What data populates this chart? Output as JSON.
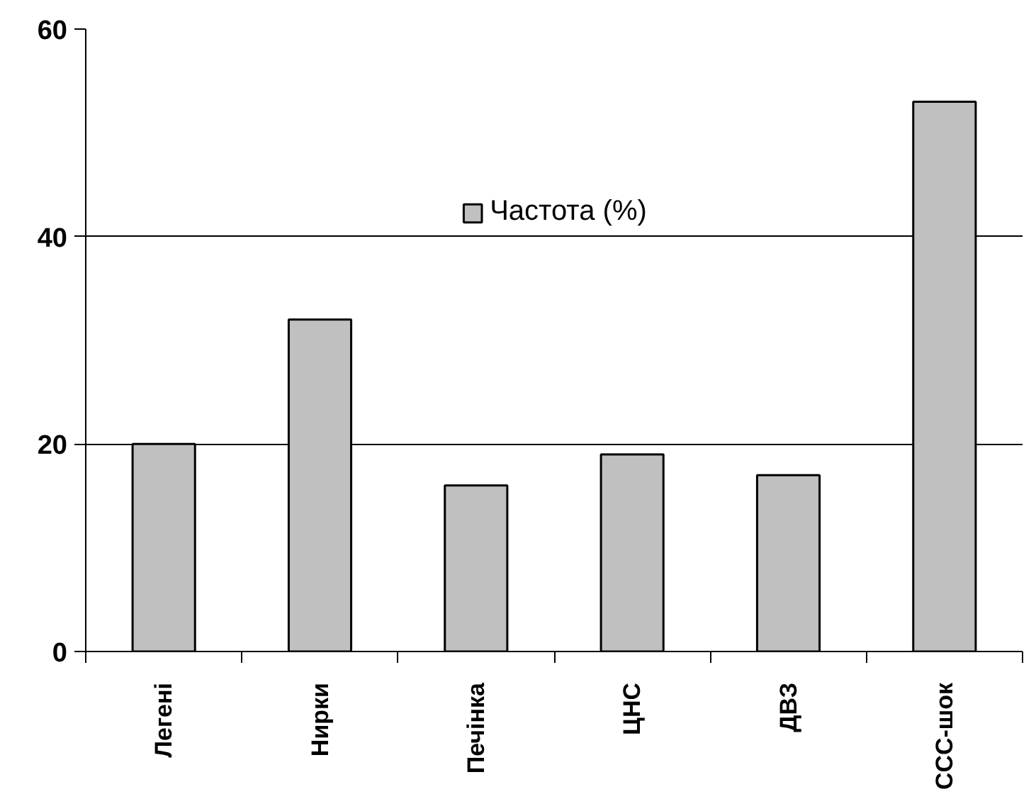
{
  "chart_data": {
    "type": "bar",
    "categories": [
      "Легені",
      "Нирки",
      "Печінка",
      "ЦНС",
      "ДВЗ",
      "ССС-шок"
    ],
    "series": [
      {
        "name": "Частота (%)",
        "color": "#c0c0c0",
        "values": [
          20,
          32,
          16,
          19,
          17,
          53
        ]
      }
    ],
    "ylim": [
      0,
      60
    ],
    "yticks": [
      0,
      20,
      40,
      60
    ],
    "grid": "y",
    "legend": "top"
  }
}
